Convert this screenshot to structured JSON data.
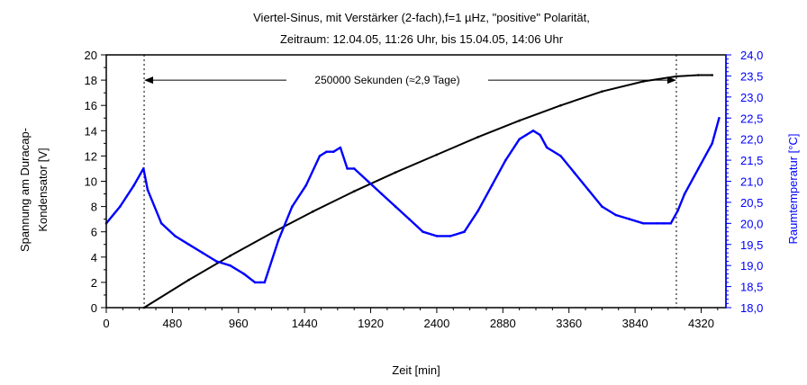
{
  "chart_data": {
    "type": "line",
    "title_line1": "Viertel-Sinus, mit Verstärker (2-fach),f=1 µHz, \"positive\" Polarität,",
    "title_line2": "Zeitraum: 12.04.05, 11:26 Uhr, bis 15.04.05, 14:06 Uhr",
    "xlabel": "Zeit [min]",
    "ylabel_left_line1": "Spannung am Duracap-",
    "ylabel_left_line2": "Kondensator [V]",
    "ylabel_right": "Raumtemperatur [°C]",
    "xlim": [
      0,
      4500
    ],
    "ylim_left": [
      0,
      20
    ],
    "ylim_right": [
      18.0,
      24.0
    ],
    "x_ticks": [
      "0",
      "480",
      "960",
      "1440",
      "1920",
      "2400",
      "2880",
      "3360",
      "3840",
      "4320"
    ],
    "y_left_ticks": [
      "0",
      "2",
      "4",
      "6",
      "8",
      "10",
      "12",
      "14",
      "16",
      "18",
      "20"
    ],
    "y_right_ticks": [
      "18,0",
      "18,5",
      "19,0",
      "19,5",
      "20,0",
      "20,5",
      "21,0",
      "21,5",
      "22,0",
      "22,5",
      "23,0",
      "23,5",
      "24,0"
    ],
    "colors": {
      "voltage": "#000000",
      "temperature": "#0000ff",
      "axis": "#000000"
    },
    "annotation": {
      "text": "250000 Sekunden (≈2,9 Tage)",
      "x_start": 275,
      "x_end": 4140,
      "y": 18
    },
    "series": [
      {
        "axis": "left",
        "x": [
          275,
          600,
          900,
          1200,
          1500,
          1800,
          2100,
          2400,
          2700,
          3000,
          3300,
          3600,
          3900,
          4140,
          4300,
          4400
        ],
        "values": [
          0,
          2.2,
          4.1,
          5.9,
          7.6,
          9.2,
          10.7,
          12.1,
          13.5,
          14.8,
          16.0,
          17.1,
          17.9,
          18.3,
          18.4,
          18.4
        ]
      },
      {
        "axis": "right",
        "x": [
          0,
          100,
          200,
          270,
          300,
          400,
          500,
          600,
          700,
          800,
          900,
          1000,
          1080,
          1120,
          1150,
          1250,
          1350,
          1450,
          1550,
          1600,
          1650,
          1700,
          1750,
          1800,
          1900,
          2000,
          2100,
          2200,
          2300,
          2400,
          2500,
          2600,
          2700,
          2800,
          2900,
          3000,
          3050,
          3100,
          3150,
          3200,
          3300,
          3400,
          3500,
          3600,
          3700,
          3800,
          3900,
          4000,
          4050,
          4100,
          4150,
          4200,
          4300,
          4400,
          4450
        ],
        "values": [
          20.0,
          20.4,
          20.9,
          21.3,
          20.8,
          20.0,
          19.7,
          19.5,
          19.3,
          19.1,
          19.0,
          18.8,
          18.6,
          18.6,
          18.6,
          19.6,
          20.4,
          20.9,
          21.6,
          21.7,
          21.7,
          21.8,
          21.3,
          21.3,
          21.0,
          20.7,
          20.4,
          20.1,
          19.8,
          19.7,
          19.7,
          19.8,
          20.3,
          20.9,
          21.5,
          22.0,
          22.1,
          22.2,
          22.1,
          21.8,
          21.6,
          21.2,
          20.8,
          20.4,
          20.2,
          20.1,
          20.0,
          20.0,
          20.0,
          20.0,
          20.3,
          20.7,
          21.3,
          21.9,
          22.5
        ]
      }
    ]
  }
}
